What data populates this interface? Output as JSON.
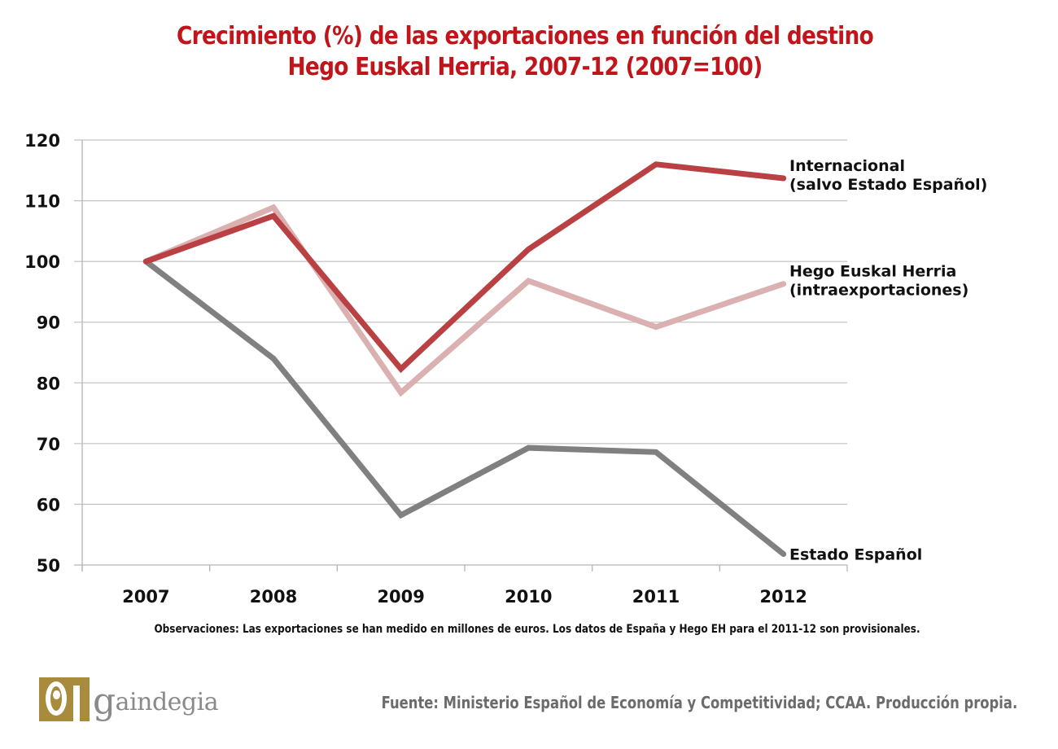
{
  "header": {
    "title_line1": "Crecimiento (%) de las exportaciones en función del destino",
    "title_line2": "Hego Euskal Herria, 2007-12 (2007=100)"
  },
  "chart_data": {
    "type": "line",
    "title": "Crecimiento (%) de las exportaciones en función del destino — Hego Euskal Herria, 2007-12 (2007=100)",
    "xlabel": "",
    "ylabel": "",
    "categories": [
      "2007",
      "2008",
      "2009",
      "2010",
      "2011",
      "2012"
    ],
    "ylim": [
      50,
      120
    ],
    "yticks": [
      50,
      60,
      70,
      80,
      90,
      100,
      110,
      120
    ],
    "ytick_labels": [
      "50",
      "60",
      "70",
      "80",
      "90",
      "100",
      "110",
      "120"
    ],
    "grid": "horizontal",
    "legend": "direct-labels-right",
    "series": [
      {
        "name": "Estado Español",
        "label_lines": [
          "Estado Español"
        ],
        "color": "#808080",
        "values": [
          100,
          84.0,
          58.2,
          69.3,
          68.6,
          51.8
        ]
      },
      {
        "name": "Hego Euskal Herria (intraexportaciones)",
        "label_lines": [
          "Hego Euskal Herria",
          "(intraexportaciones)"
        ],
        "color": "#dbb0b1",
        "values": [
          100,
          108.9,
          78.4,
          96.8,
          89.2,
          96.3
        ]
      },
      {
        "name": "Internacional (salvo Estado Español)",
        "label_lines": [
          "Internacional",
          "(salvo Estado Español)"
        ],
        "color": "#b94143",
        "values": [
          100,
          107.5,
          82.3,
          102.0,
          116.0,
          113.7
        ]
      }
    ]
  },
  "footer": {
    "note": "Observaciones: Las exportaciones se han medido en millones de euros. Los datos de España y Hego EH para el 2011-12 son provisionales.",
    "source": "Fuente: Ministerio Español de Economía y Competitividad; CCAA. Producción propia.",
    "logo_text_initial": "g",
    "logo_text_rest": "aindegia"
  }
}
